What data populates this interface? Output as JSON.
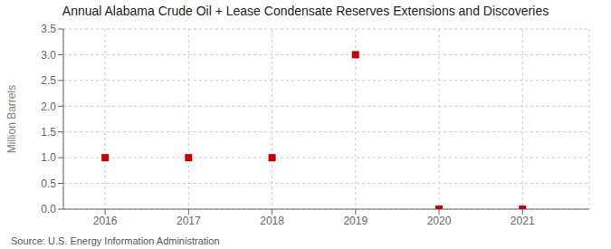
{
  "chart_data": {
    "type": "scatter",
    "title": "Annual Alabama Crude Oil + Lease Condensate Reserves Extensions and Discoveries",
    "ylabel": "Million Barrels",
    "annotations": [
      "Source: U.S. Energy Information Administration"
    ],
    "x": [
      2016,
      2017,
      2018,
      2019,
      2020,
      2021
    ],
    "values": [
      1.0,
      1.0,
      1.0,
      3.0,
      0.0,
      0.0
    ],
    "color": "#cc0000",
    "marker": "square",
    "xlim": [
      2015.5,
      2021.8
    ],
    "xticks": [
      2016,
      2017,
      2018,
      2019,
      2020,
      2021
    ],
    "ylim": [
      0.0,
      3.5
    ],
    "yticks": [
      {
        "value": 0,
        "label": "0.0"
      },
      0.5,
      {
        "value": 1,
        "label": "1.0"
      },
      1.5,
      {
        "value": 2,
        "label": "2.0"
      },
      2.5,
      {
        "value": 3,
        "label": "3.0"
      },
      3.5
    ],
    "grid": true
  }
}
